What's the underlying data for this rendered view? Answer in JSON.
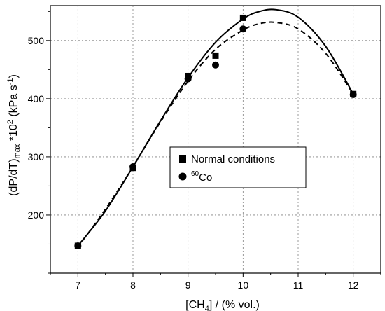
{
  "chart_data": {
    "type": "scatter",
    "x_axis": {
      "label_parts": [
        "[CH",
        "4",
        "] / (% vol.)"
      ],
      "range": [
        6.5,
        12.5
      ],
      "ticks": [
        7,
        8,
        9,
        10,
        11,
        12
      ],
      "tick_labels": [
        "7",
        "8",
        "9",
        "10",
        "11",
        "12"
      ],
      "minor_step": 0.5
    },
    "y_axis": {
      "label_parts": [
        "(dP/dT)",
        "max",
        " *10",
        "2",
        " (kPa s",
        "-1",
        ")"
      ],
      "range": [
        100,
        560
      ],
      "ticks": [
        200,
        300,
        400,
        500
      ],
      "tick_labels": [
        "200",
        "300",
        "400",
        "500"
      ],
      "minor_step": 50
    },
    "grid": "dotted",
    "legend": {
      "placement": "center-right",
      "entries": [
        {
          "marker": "square",
          "label": "Normal conditions"
        },
        {
          "marker": "circle",
          "label_sup": "60",
          "label": "Co"
        }
      ]
    },
    "series": [
      {
        "name": "Normal conditions",
        "marker": "square",
        "points": [
          [
            7,
            147
          ],
          [
            8,
            281
          ],
          [
            9,
            439
          ],
          [
            9.5,
            474
          ],
          [
            10,
            539
          ],
          [
            12,
            408
          ]
        ]
      },
      {
        "name": "60Co",
        "marker": "circle",
        "points": [
          [
            7,
            147
          ],
          [
            8,
            283
          ],
          [
            9,
            434
          ],
          [
            9.5,
            458
          ],
          [
            10,
            520
          ],
          [
            12,
            407
          ]
        ]
      }
    ],
    "fit_curves": [
      {
        "series": "Normal conditions",
        "style": "solid",
        "points": [
          [
            7,
            147
          ],
          [
            7.5,
            207
          ],
          [
            8,
            283
          ],
          [
            8.5,
            362
          ],
          [
            9,
            436
          ],
          [
            9.5,
            497
          ],
          [
            10,
            537
          ],
          [
            10.3,
            550
          ],
          [
            10.6,
            553
          ],
          [
            11,
            540
          ],
          [
            11.5,
            490
          ],
          [
            12,
            408
          ]
        ]
      },
      {
        "series": "60Co",
        "style": "dashed",
        "points": [
          [
            7,
            145
          ],
          [
            7.5,
            210
          ],
          [
            8,
            283
          ],
          [
            8.5,
            360
          ],
          [
            9,
            430
          ],
          [
            9.5,
            485
          ],
          [
            10,
            518
          ],
          [
            10.3,
            529
          ],
          [
            10.6,
            531
          ],
          [
            11,
            520
          ],
          [
            11.5,
            478
          ],
          [
            12,
            408
          ]
        ]
      }
    ]
  }
}
